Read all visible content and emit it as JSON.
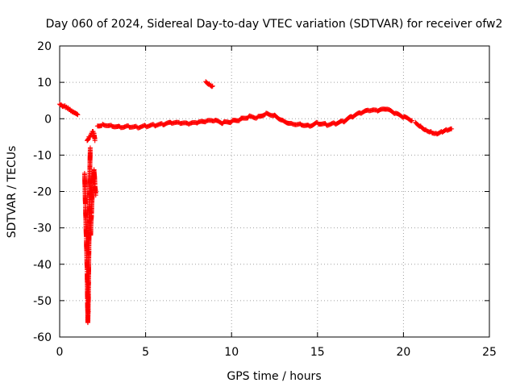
{
  "chart_data": {
    "type": "scatter",
    "title": "Day 060 of 2024, Sidereal Day-to-day VTEC variation (SDTVAR) for receiver ofw2",
    "xlabel": "GPS time / hours",
    "ylabel": "SDTVAR / TECUs",
    "xlim": [
      0,
      25
    ],
    "ylim": [
      -60,
      20
    ],
    "xticks": [
      0,
      5,
      10,
      15,
      20,
      25
    ],
    "yticks": [
      -60,
      -50,
      -40,
      -30,
      -20,
      -10,
      0,
      10,
      20
    ],
    "grid": true,
    "marker": "+",
    "series": [
      {
        "name": "SDTVAR",
        "color": "#ff0000",
        "segments": [
          {
            "x": [
              0.0,
              0.1,
              0.2,
              0.3,
              0.4,
              0.5,
              0.6,
              0.7,
              0.8,
              0.9,
              1.0,
              1.05
            ],
            "y": [
              4.0,
              3.8,
              3.5,
              3.6,
              3.2,
              3.0,
              2.6,
              2.2,
              1.9,
              1.6,
              1.3,
              1.1
            ]
          },
          {
            "x": [
              1.45,
              1.5,
              1.55,
              1.6,
              1.62,
              1.64,
              1.66,
              1.68,
              1.7,
              1.72,
              1.74,
              1.76,
              1.78
            ],
            "y": [
              -15,
              -24,
              -33,
              -42,
              -50,
              -56,
              -53,
              -45,
              -36,
              -28,
              -20,
              -13,
              -8
            ]
          },
          {
            "x": [
              1.6,
              1.7,
              1.8,
              1.85,
              1.9,
              1.95,
              2.0,
              2.05
            ],
            "y": [
              -6,
              -5,
              -4.5,
              -4,
              -3.5,
              -3.5,
              -4,
              -6
            ]
          },
          {
            "x": [
              1.8,
              1.85,
              1.9,
              1.95,
              2.0,
              2.05,
              2.1
            ],
            "y": [
              -32,
              -26,
              -21,
              -16,
              -14,
              -18,
              -21
            ]
          },
          {
            "x": [
              2.2,
              2.5,
              3.0,
              3.5,
              4.0,
              4.5,
              5.0,
              5.5,
              6.0,
              6.5,
              7.0,
              7.5,
              8.0,
              8.5,
              9.0,
              9.5,
              10.0,
              10.5,
              11.0,
              11.5,
              12.0,
              12.5,
              13.0,
              13.5,
              14.0,
              14.5,
              15.0,
              15.5,
              16.0,
              16.5,
              17.0,
              17.5,
              18.0,
              18.5,
              19.0,
              19.5,
              20.0,
              20.5
            ],
            "y": [
              -2.0,
              -1.5,
              -1.8,
              -2.2,
              -2.0,
              -2.3,
              -2.0,
              -1.8,
              -1.6,
              -1.2,
              -1.3,
              -1.5,
              -1.2,
              -0.8,
              -0.6,
              -1.2,
              -0.8,
              -0.2,
              0.6,
              0.4,
              1.5,
              1.0,
              -0.5,
              -1.3,
              -1.4,
              -1.9,
              -1.1,
              -1.6,
              -1.3,
              -0.8,
              0.5,
              1.5,
              2.2,
              2.1,
              2.6,
              1.4,
              0.4,
              -0.5
            ]
          },
          {
            "x": [
              8.5,
              8.7,
              8.9
            ],
            "y": [
              10.2,
              9.6,
              9.0
            ]
          },
          {
            "x": [
              20.7,
              21.0,
              21.3,
              21.6,
              21.9,
              22.2,
              22.5,
              22.8
            ],
            "y": [
              -1.0,
              -2.0,
              -3.0,
              -3.5,
              -4.0,
              -3.5,
              -3.0,
              -2.8
            ]
          }
        ]
      }
    ]
  }
}
